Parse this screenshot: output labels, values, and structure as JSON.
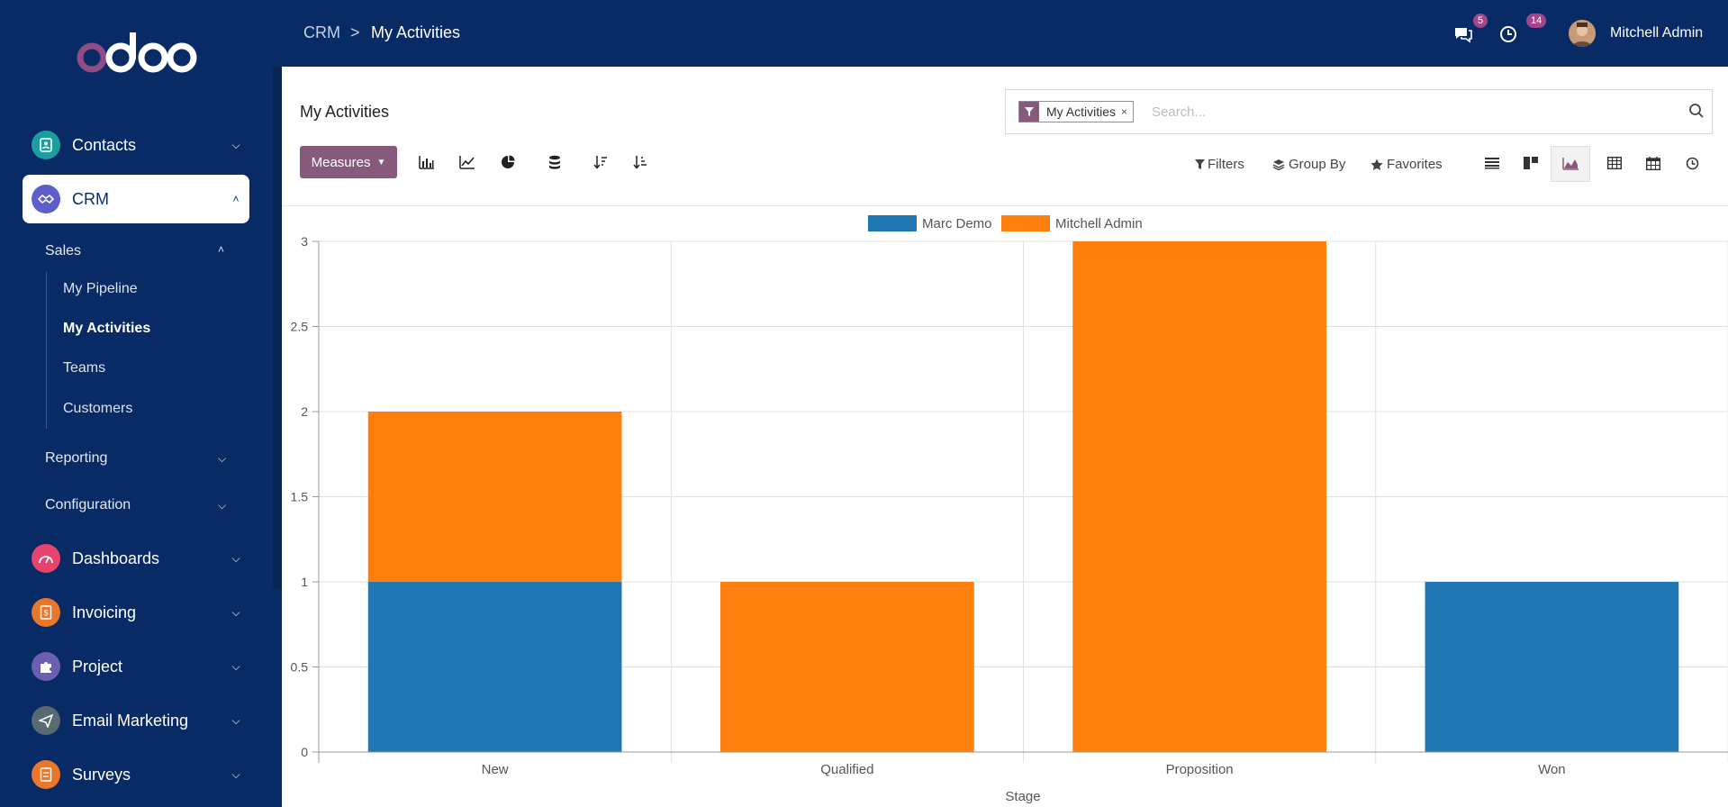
{
  "app": {
    "logo_text": "odoo",
    "colors": {
      "sidebar": "#082b66",
      "brand": "#875a7b",
      "series_marc": "#1f77b4",
      "series_mitchell": "#ff7f0e"
    }
  },
  "sidebar": {
    "apps": [
      {
        "label": "Contacts",
        "icon": "contacts-icon",
        "color": "#1a9ea0"
      },
      {
        "label": "CRM",
        "icon": "handshake-icon",
        "color": "#5b5fc7",
        "active": true
      },
      {
        "label": "Dashboards",
        "icon": "speedometer-icon",
        "color": "#e8436c"
      },
      {
        "label": "Invoicing",
        "icon": "invoice-icon",
        "color": "#e8762b"
      },
      {
        "label": "Project",
        "icon": "puzzle-icon",
        "color": "#6c5fb2"
      },
      {
        "label": "Email Marketing",
        "icon": "paper-plane-icon",
        "color": "#5a6a72"
      },
      {
        "label": "Surveys",
        "icon": "survey-icon",
        "color": "#e8762b"
      }
    ],
    "crm_menu": {
      "sales": "Sales",
      "sales_items": [
        "My Pipeline",
        "My Activities",
        "Teams",
        "Customers"
      ],
      "reporting": "Reporting",
      "configuration": "Configuration"
    }
  },
  "topbar": {
    "breadcrumb_root": "CRM",
    "breadcrumb_sep": ">",
    "breadcrumb_current": "My Activities",
    "messages_count": "5",
    "activities_count": "14",
    "user_name": "Mitchell Admin"
  },
  "control_panel": {
    "title": "My Activities",
    "facet_label": "My Activities",
    "facet_remove": "×",
    "search_placeholder": "Search...",
    "measures_label": "Measures",
    "filters_label": "Filters",
    "group_by_label": "Group By",
    "favorites_label": "Favorites",
    "chart_tools": [
      "bar-chart-icon",
      "line-chart-icon",
      "pie-chart-icon",
      "stacked-icon",
      "sort-descending-icon",
      "sort-ascending-icon"
    ],
    "views": [
      "list-view-icon",
      "kanban-view-icon",
      "graph-view-icon",
      "pivot-view-icon",
      "calendar-view-icon",
      "activity-view-icon"
    ],
    "active_view": "graph-view-icon"
  },
  "chart_data": {
    "type": "bar",
    "stacked": true,
    "categories": [
      "New",
      "Qualified",
      "Proposition",
      "Won"
    ],
    "series": [
      {
        "name": "Marc Demo",
        "values": [
          1,
          0,
          0,
          1
        ],
        "color": "#1f77b4"
      },
      {
        "name": "Mitchell Admin",
        "values": [
          1,
          1,
          3,
          0
        ],
        "color": "#ff7f0e"
      }
    ],
    "xlabel": "Stage",
    "ylabel": "",
    "ylim": [
      0,
      3
    ],
    "yticks": [
      "0",
      "0.5",
      "1",
      "1.5",
      "2",
      "2.5",
      "3"
    ],
    "grid": true,
    "legend": "top-center"
  }
}
